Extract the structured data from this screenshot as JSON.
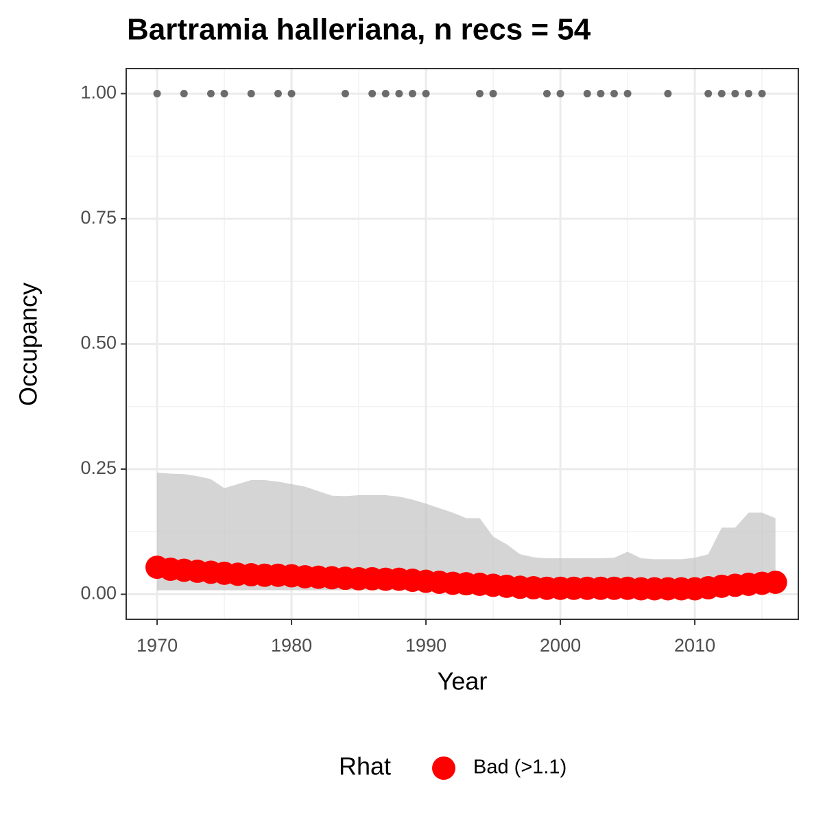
{
  "chart_data": {
    "type": "line",
    "title": "Bartramia halleriana, n recs = 54",
    "x_label": "Year",
    "y_label": "Occupancy",
    "x": [
      1970,
      1971,
      1972,
      1973,
      1974,
      1975,
      1976,
      1977,
      1978,
      1979,
      1980,
      1981,
      1982,
      1983,
      1984,
      1985,
      1986,
      1987,
      1988,
      1989,
      1990,
      1991,
      1992,
      1993,
      1994,
      1995,
      1996,
      1997,
      1998,
      1999,
      2000,
      2001,
      2002,
      2003,
      2004,
      2005,
      2006,
      2007,
      2008,
      2009,
      2010,
      2011,
      2012,
      2013,
      2014,
      2015,
      2016
    ],
    "series": [
      {
        "name": "Bad (>1.1)",
        "color": "#ff0000",
        "values": [
          0.054,
          0.05,
          0.048,
          0.046,
          0.044,
          0.042,
          0.04,
          0.039,
          0.038,
          0.038,
          0.037,
          0.035,
          0.034,
          0.033,
          0.032,
          0.031,
          0.031,
          0.03,
          0.03,
          0.028,
          0.026,
          0.024,
          0.022,
          0.021,
          0.02,
          0.018,
          0.016,
          0.014,
          0.013,
          0.012,
          0.012,
          0.012,
          0.012,
          0.012,
          0.012,
          0.012,
          0.011,
          0.011,
          0.011,
          0.011,
          0.011,
          0.013,
          0.016,
          0.018,
          0.02,
          0.022,
          0.024
        ]
      }
    ],
    "ribbon": {
      "color": "#bebebe",
      "lower": [
        0.008,
        0.008,
        0.008,
        0.008,
        0.008,
        0.008,
        0.008,
        0.008,
        0.008,
        0.008,
        0.008,
        0.008,
        0.008,
        0.008,
        0.008,
        0.008,
        0.008,
        0.008,
        0.008,
        0.008,
        0.007,
        0.007,
        0.007,
        0.006,
        0.006,
        0.006,
        0.005,
        0.005,
        0.005,
        0.005,
        0.005,
        0.005,
        0.005,
        0.005,
        0.005,
        0.005,
        0.005,
        0.005,
        0.005,
        0.005,
        0.005,
        0.005,
        0.005,
        0.006,
        0.006,
        0.006,
        0.007
      ],
      "upper": [
        0.243,
        0.241,
        0.24,
        0.236,
        0.23,
        0.212,
        0.22,
        0.228,
        0.228,
        0.225,
        0.22,
        0.215,
        0.206,
        0.197,
        0.196,
        0.198,
        0.198,
        0.198,
        0.195,
        0.189,
        0.181,
        0.172,
        0.163,
        0.152,
        0.152,
        0.115,
        0.1,
        0.08,
        0.074,
        0.072,
        0.072,
        0.072,
        0.072,
        0.072,
        0.073,
        0.085,
        0.072,
        0.07,
        0.07,
        0.07,
        0.073,
        0.08,
        0.133,
        0.133,
        0.163,
        0.163,
        0.152
      ]
    },
    "records": {
      "color": "#6b6b6b",
      "x": [
        1970,
        1972,
        1974,
        1975,
        1977,
        1979,
        1980,
        1984,
        1986,
        1987,
        1988,
        1989,
        1990,
        1994,
        1995,
        1999,
        2000,
        2002,
        2003,
        2004,
        2005,
        2008,
        2011,
        2012,
        2013,
        2014,
        2015
      ],
      "values": [
        1,
        1,
        1,
        1,
        1,
        1,
        1,
        1,
        1,
        1,
        1,
        1,
        1,
        1,
        1,
        1,
        1,
        1,
        1,
        1,
        1,
        1,
        1,
        1,
        1,
        1,
        1
      ]
    },
    "xlim": [
      1967.7,
      2017.7
    ],
    "ylim": [
      -0.05,
      1.05
    ],
    "xticks": [
      1970,
      1980,
      1990,
      2000,
      2010
    ],
    "xminorticks": [
      1975,
      1985,
      1995,
      2005,
      2015
    ],
    "yticks": [
      {
        "value": 0,
        "label": "0.00"
      },
      {
        "value": 0.25,
        "label": "0.25"
      },
      {
        "value": 0.5,
        "label": "0.50"
      },
      {
        "value": 0.75,
        "label": "0.75"
      },
      {
        "value": 1,
        "label": "1.00"
      }
    ],
    "yminorticks": [
      0.125,
      0.375,
      0.625,
      0.875
    ],
    "grid": true,
    "legend_title": "Rhat",
    "legend_position": "bottom"
  }
}
